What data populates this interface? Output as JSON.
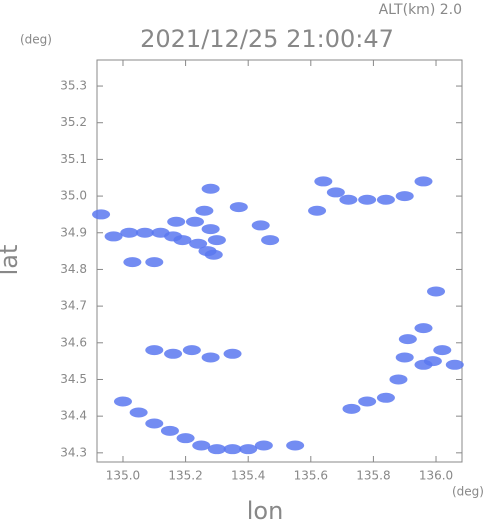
{
  "chart_data": {
    "type": "scatter",
    "title": "2021/12/25 21:00:47",
    "subtitle": "ALT(km) 2.0",
    "y_unit": "(deg)",
    "x_unit": "(deg)",
    "x_label": "lon",
    "y_label": "lat",
    "color": "#5a78f0",
    "x": [
      134.93,
      134.97,
      135.02,
      135.07,
      135.12,
      135.16,
      135.19,
      135.24,
      135.27,
      135.29,
      135.23,
      135.26,
      135.28,
      135.3,
      135.17,
      135.03,
      135.1,
      135.28,
      135.37,
      135.44,
      135.47,
      135.64,
      135.68,
      135.72,
      135.78,
      135.84,
      135.9,
      135.96,
      135.62,
      135.1,
      135.16,
      135.22,
      135.28,
      135.35,
      135.0,
      135.05,
      135.1,
      135.15,
      135.2,
      135.25,
      135.3,
      135.35,
      135.4,
      135.45,
      135.55,
      135.73,
      135.78,
      135.84,
      135.88,
      135.9,
      135.91,
      135.96,
      135.99,
      136.02,
      136.06,
      135.96,
      136.0
    ],
    "y": [
      34.95,
      34.89,
      34.9,
      34.9,
      34.9,
      34.89,
      34.88,
      34.87,
      34.85,
      34.84,
      34.93,
      34.96,
      34.91,
      34.88,
      34.93,
      34.82,
      34.82,
      35.02,
      34.97,
      34.92,
      34.88,
      35.04,
      35.01,
      34.99,
      34.99,
      34.99,
      35.0,
      35.04,
      34.96,
      34.58,
      34.57,
      34.58,
      34.56,
      34.57,
      34.44,
      34.41,
      34.38,
      34.36,
      34.34,
      34.32,
      34.31,
      34.31,
      34.31,
      34.32,
      34.32,
      34.42,
      34.44,
      34.45,
      34.5,
      34.56,
      34.61,
      34.54,
      34.55,
      34.58,
      34.54,
      34.64,
      34.74
    ],
    "xlim": [
      134.917,
      136.083
    ],
    "ylim": [
      34.275,
      35.371
    ],
    "xticks": [
      {
        "value": 135,
        "label": "135.0"
      },
      135.2,
      135.4,
      135.6,
      135.8,
      {
        "value": 136,
        "label": "136.0"
      }
    ],
    "yticks": [
      34.3,
      34.4,
      34.5,
      34.6,
      34.7,
      34.8,
      34.9,
      {
        "value": 35,
        "label": "35.0"
      },
      35.1,
      35.2,
      35.3
    ]
  }
}
